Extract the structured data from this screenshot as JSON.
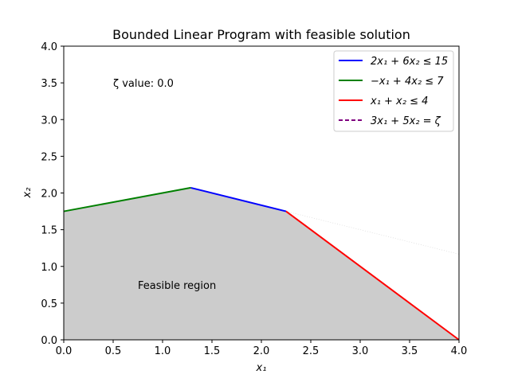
{
  "chart_data": {
    "type": "line",
    "title": "Bounded Linear Program with feasible solution",
    "xlabel": "x₁",
    "ylabel": "x₂",
    "xlim": [
      0.0,
      4.0
    ],
    "ylim": [
      0.0,
      4.0
    ],
    "xticks": [
      "0.0",
      "0.5",
      "1.0",
      "1.5",
      "2.0",
      "2.5",
      "3.0",
      "3.5",
      "4.0"
    ],
    "yticks": [
      "0.0",
      "0.5",
      "1.0",
      "1.5",
      "2.0",
      "2.5",
      "3.0",
      "3.5",
      "4.0"
    ],
    "grid": false,
    "legend_position": "top-right",
    "feasible_region": {
      "label": "Feasible region",
      "color": "#cccccc",
      "vertices": [
        [
          0,
          0
        ],
        [
          0,
          1.75
        ],
        [
          1.2857,
          2.0714
        ],
        [
          2.25,
          1.75
        ],
        [
          4,
          0
        ]
      ]
    },
    "series": [
      {
        "name": "2x₁ + 6x₂ ≤ 15",
        "color": "#0000ff",
        "style": "solid",
        "x": [
          1.2857,
          2.25
        ],
        "y": [
          2.0714,
          1.75
        ]
      },
      {
        "name": "−x₁ + 4x₂ ≤ 7",
        "color": "#008000",
        "style": "solid",
        "x": [
          0,
          1.2857
        ],
        "y": [
          1.75,
          2.0714
        ]
      },
      {
        "name": "x₁ + x₂ ≤ 4",
        "color": "#ff0000",
        "style": "solid",
        "x": [
          2.25,
          4
        ],
        "y": [
          1.75,
          0
        ]
      },
      {
        "name": "3x₁ + 5x₂ = ζ",
        "color": "#800080",
        "style": "dashed",
        "x": [],
        "y": []
      }
    ],
    "faint_line": {
      "color": "#dddddd",
      "x": [
        2.25,
        4
      ],
      "y": [
        1.75,
        1.1667
      ]
    },
    "annotations": [
      {
        "text": "ζ value: 0.0",
        "x": 0.5,
        "y": 3.5
      },
      {
        "text": "Feasible region",
        "x": 0.75,
        "y": 0.75
      }
    ]
  }
}
